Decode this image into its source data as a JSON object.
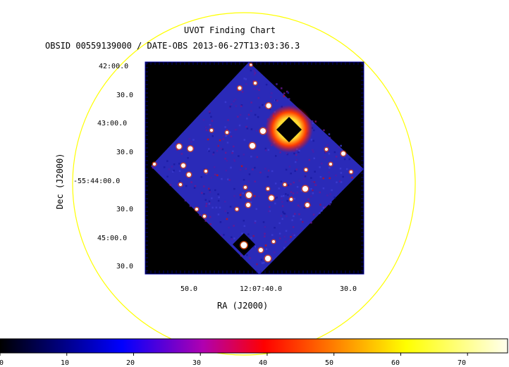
{
  "chart_data": {
    "type": "heatmap",
    "title": "UVOT Finding Chart",
    "subtitle": "OBSID 00559139000 / DATE-OBS 2013-06-27T13:03:36.3",
    "xlabel": "RA (J2000)",
    "ylabel": "Dec (J2000)",
    "x_ticks": [
      "50.0",
      "12:07:40.0",
      "30.0"
    ],
    "y_ticks": [
      "42:00.0",
      "30.0",
      "43:00.0",
      "30.0",
      "-55:44:00.0",
      "30.0",
      "45:00.0",
      "30.0"
    ],
    "colorbar": {
      "colormap": "heat",
      "range": [
        0,
        76
      ],
      "ticks": [
        "0",
        "10",
        "20",
        "30",
        "40",
        "50",
        "60",
        "70"
      ],
      "tick_values": [
        0,
        10,
        20,
        30,
        40,
        50,
        60,
        70
      ]
    },
    "field_circle_color": "#ffff00",
    "image_background_color": "#000000",
    "field_fill_color": "#2a2ab8"
  }
}
